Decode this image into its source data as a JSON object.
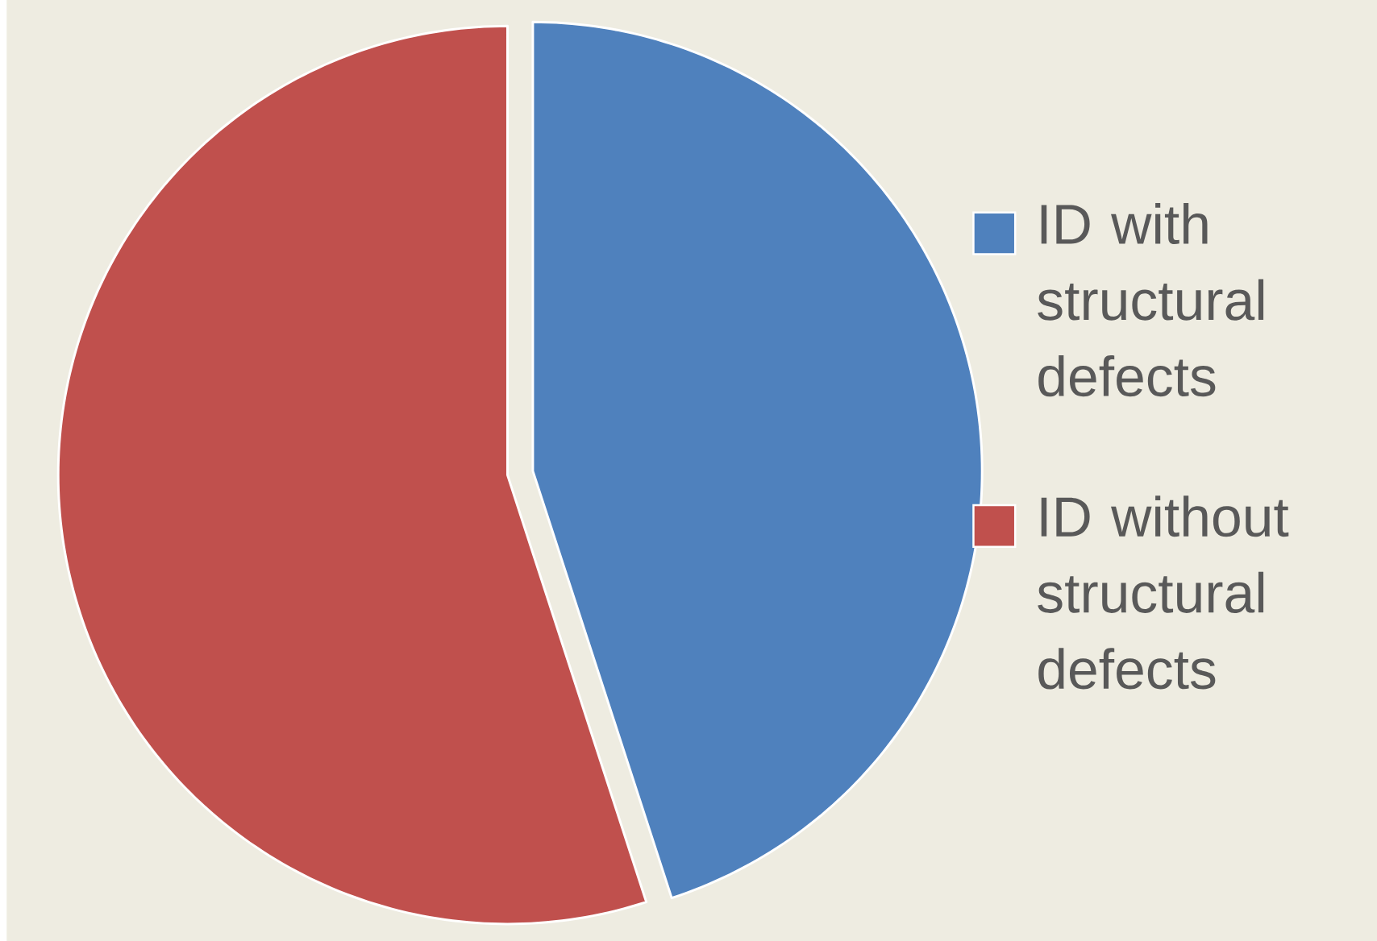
{
  "chart_data": {
    "type": "pie",
    "categories": [
      "ID with structural defects",
      "ID without structural defects"
    ],
    "values": [
      45,
      55
    ],
    "colors": [
      "#4f81bd",
      "#c0504d"
    ],
    "legend": "right"
  }
}
